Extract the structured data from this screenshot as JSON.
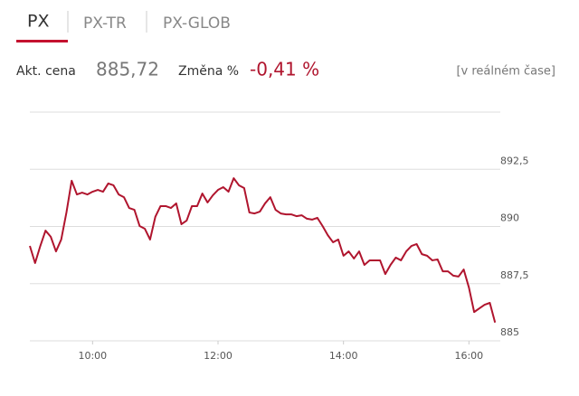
{
  "tabs": [
    "PX",
    "PX-TR",
    "PX-GLOB"
  ],
  "quote": {
    "price_label": "Akt. cena",
    "price": "885,72",
    "change_label": "Změna %",
    "change": "-0,41 %",
    "realtime": "[v reálném čase]"
  },
  "chart_data": {
    "type": "line",
    "color": "#b0152e",
    "x": [
      540,
      545,
      550,
      555,
      560,
      565,
      570,
      575,
      580,
      585,
      590,
      595,
      600,
      605,
      610,
      615,
      620,
      625,
      630,
      635,
      640,
      645,
      650,
      655,
      660,
      665,
      670,
      675,
      680,
      685,
      690,
      695,
      700,
      705,
      710,
      715,
      720,
      725,
      730,
      735,
      740,
      745,
      750,
      755,
      760,
      765,
      770,
      775,
      780,
      785,
      790,
      795,
      800,
      805,
      810,
      815,
      820,
      825,
      830,
      835,
      840,
      845,
      850,
      855,
      860,
      865,
      870,
      875,
      880,
      885,
      890,
      895,
      900,
      905,
      910,
      915,
      920,
      925,
      930,
      935,
      940,
      945,
      950,
      955,
      960,
      965,
      970,
      975,
      980,
      985
    ],
    "values": [
      889.15,
      888.4,
      889.15,
      889.82,
      889.55,
      888.91,
      889.43,
      890.61,
      892.0,
      891.4,
      891.48,
      891.4,
      891.52,
      891.6,
      891.52,
      891.88,
      891.8,
      891.4,
      891.28,
      890.81,
      890.73,
      890.02,
      889.9,
      889.43,
      890.42,
      890.89,
      890.89,
      890.81,
      891.01,
      890.1,
      890.26,
      890.89,
      890.89,
      891.44,
      891.05,
      891.36,
      891.6,
      891.72,
      891.52,
      892.11,
      891.8,
      891.68,
      890.61,
      890.57,
      890.65,
      891.01,
      891.28,
      890.73,
      890.57,
      890.53,
      890.53,
      890.45,
      890.49,
      890.34,
      890.3,
      890.38,
      890.02,
      889.62,
      889.31,
      889.43,
      888.72,
      888.91,
      888.6,
      888.91,
      888.32,
      888.52,
      888.52,
      888.52,
      887.92,
      888.32,
      888.64,
      888.52,
      888.91,
      889.15,
      889.23,
      888.79,
      888.72,
      888.52,
      888.56,
      888.04,
      888.04,
      887.85,
      887.81,
      888.12,
      887.33,
      886.26,
      886.42,
      886.58,
      886.66,
      885.8
    ],
    "xlim": [
      540,
      990
    ],
    "xticks": [
      {
        "value": 600,
        "label": "10:00"
      },
      {
        "value": 720,
        "label": "12:00"
      },
      {
        "value": 840,
        "label": "14:00"
      },
      {
        "value": 960,
        "label": "16:00"
      }
    ],
    "ylim": [
      885,
      895
    ],
    "yticks": [
      885,
      {
        "value": 887.5,
        "label": "887,5"
      },
      890,
      {
        "value": 892.5,
        "label": "892,5"
      }
    ],
    "grid": true
  }
}
